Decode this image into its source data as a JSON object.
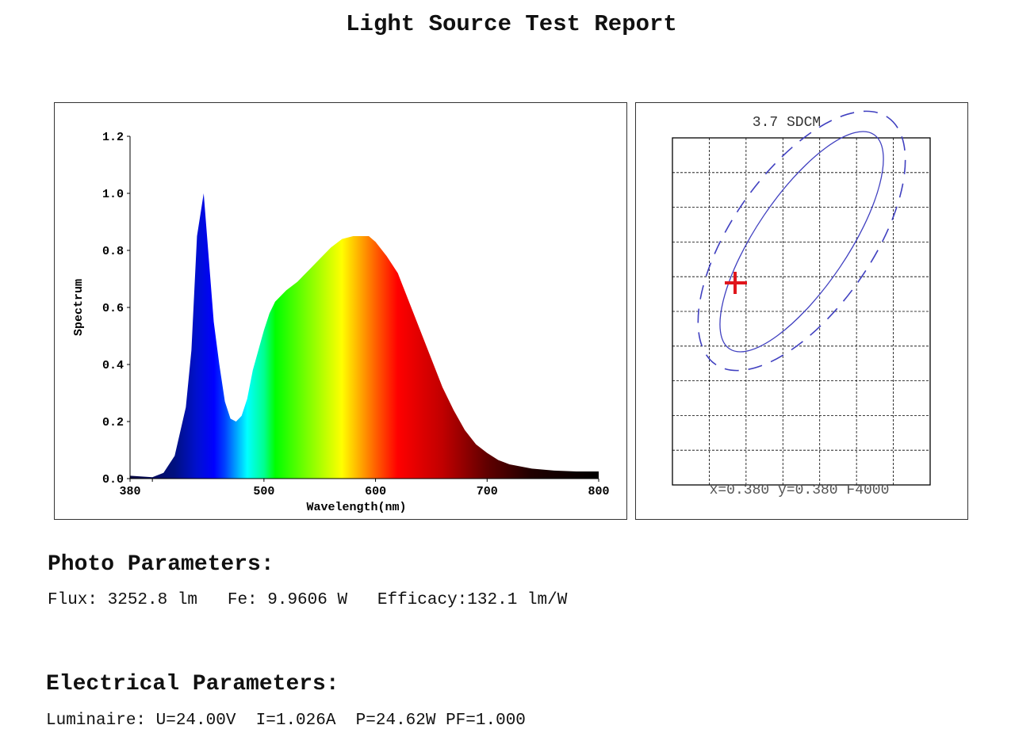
{
  "title": "Light Source Test Report",
  "chart_data": [
    {
      "type": "area",
      "xlabel": "Wavelength(nm)",
      "ylabel": "Spectrum",
      "xlim": [
        380,
        800
      ],
      "ylim": [
        0,
        1.2
      ],
      "xticks": [
        380,
        500,
        600,
        700,
        800
      ],
      "yticks": [
        "0.0",
        "0.2",
        "0.4",
        "0.6",
        "0.8",
        "1.0",
        "1.2"
      ],
      "fill": "visible-spectrum color gradient by wavelength",
      "x": [
        380,
        400,
        410,
        420,
        430,
        435,
        440,
        446,
        450,
        455,
        460,
        465,
        470,
        475,
        480,
        485,
        490,
        500,
        505,
        510,
        520,
        530,
        540,
        550,
        560,
        570,
        580,
        590,
        594,
        600,
        610,
        620,
        630,
        640,
        650,
        660,
        670,
        680,
        690,
        700,
        710,
        720,
        740,
        760,
        780,
        800
      ],
      "y": [
        0.01,
        0.005,
        0.02,
        0.08,
        0.25,
        0.45,
        0.85,
        1.0,
        0.8,
        0.55,
        0.4,
        0.27,
        0.21,
        0.2,
        0.22,
        0.28,
        0.38,
        0.52,
        0.58,
        0.62,
        0.66,
        0.69,
        0.73,
        0.77,
        0.81,
        0.84,
        0.85,
        0.85,
        0.85,
        0.83,
        0.78,
        0.72,
        0.62,
        0.52,
        0.42,
        0.32,
        0.24,
        0.17,
        0.12,
        0.09,
        0.065,
        0.05,
        0.035,
        0.028,
        0.025,
        0.025
      ],
      "grid": false
    },
    {
      "type": "scatter",
      "title": "3.7 SDCM",
      "caption": "x=0.380 y=0.380 F4000",
      "grid": true,
      "marker_color": "#e0161c",
      "ellipse_color": "#4040c0"
    }
  ],
  "photo": {
    "heading": "Photo Parameters:",
    "line": "Flux: 3252.8 lm   Fe: 9.9606 W   Efficacy:132.1 lm/W"
  },
  "electrical": {
    "heading": "Electrical Parameters:",
    "line": "Luminaire: U=24.00V  I=1.026A  P=24.62W PF=1.000"
  }
}
